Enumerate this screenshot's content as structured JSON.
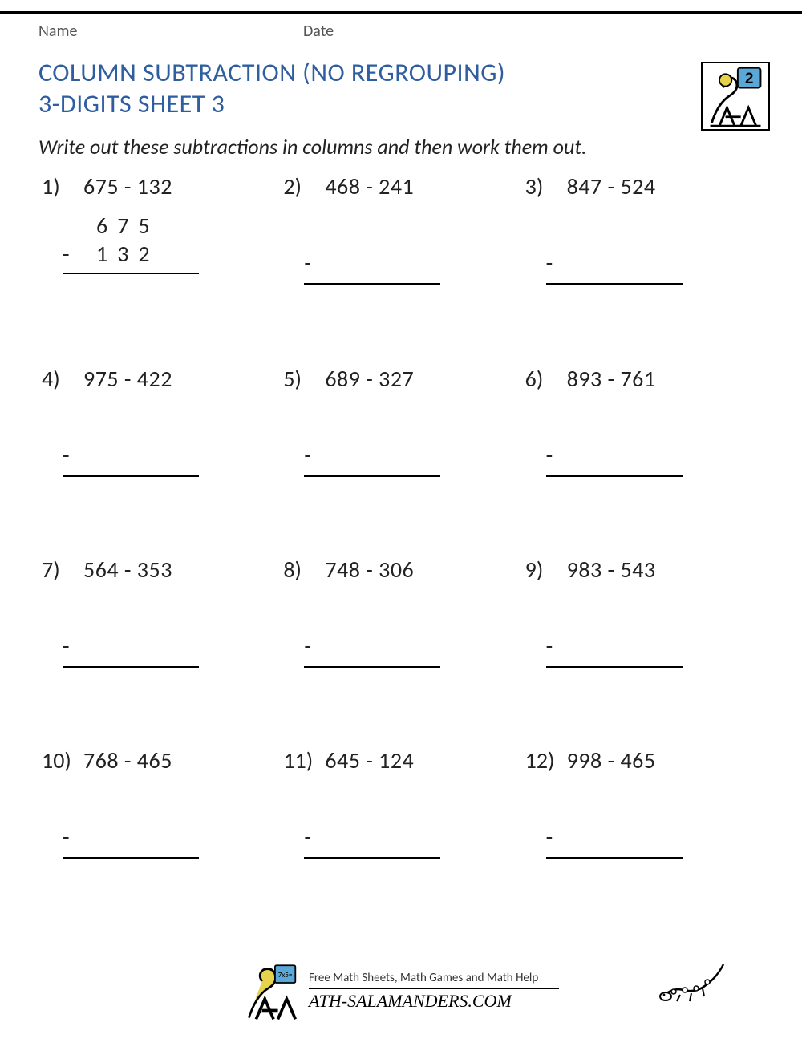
{
  "header": {
    "name_label": "Name",
    "date_label": "Date"
  },
  "title": {
    "line1": "COLUMN SUBTRACTION (NO REGROUPING)",
    "line2": "3-DIGITS SHEET 3",
    "color": "#2e5ea0"
  },
  "instruction": "Write out these subtractions in columns and then work them out.",
  "problems": [
    {
      "n": "1)",
      "a": 675,
      "b": 132,
      "show_example": true
    },
    {
      "n": "2)",
      "a": 468,
      "b": 241
    },
    {
      "n": "3)",
      "a": 847,
      "b": 524
    },
    {
      "n": "4)",
      "a": 975,
      "b": 422
    },
    {
      "n": "5)",
      "a": 689,
      "b": 327
    },
    {
      "n": "6)",
      "a": 893,
      "b": 761
    },
    {
      "n": "7)",
      "a": 564,
      "b": 353
    },
    {
      "n": "8)",
      "a": 748,
      "b": 306
    },
    {
      "n": "9)",
      "a": 983,
      "b": 543
    },
    {
      "n": "10)",
      "a": 768,
      "b": 465
    },
    {
      "n": "11)",
      "a": 645,
      "b": 124
    },
    {
      "n": "12)",
      "a": 998,
      "b": 465
    }
  ],
  "layout": {
    "columns": 3,
    "grade_badge": "2",
    "problem_font_size_pt": 21,
    "title_font_size_pt": 24,
    "instruction_font_size_pt": 19
  },
  "footer": {
    "tagline": "Free Math Sheets, Math Games and Math Help",
    "brand": "ATH-SALAMANDERS.COM"
  },
  "colors": {
    "title": "#2e5ea0",
    "text": "#222222",
    "rule": "#000000",
    "badge_bg": "#ffffff",
    "badge_num_bg": "#5aa8d8"
  }
}
